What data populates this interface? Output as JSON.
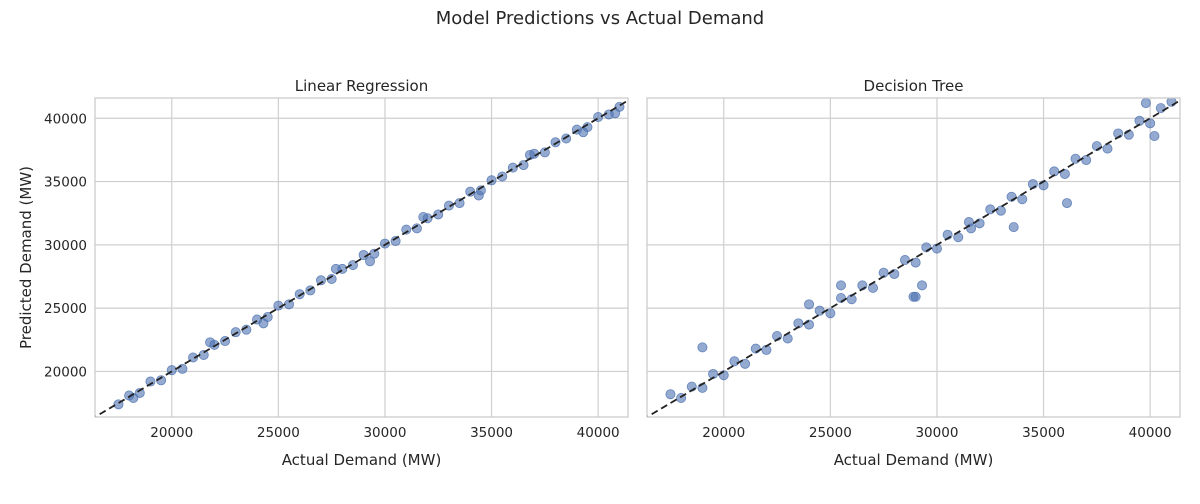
{
  "figure": {
    "suptitle": "Model Predictions vs Actual Demand"
  },
  "chart_data": [
    {
      "type": "scatter",
      "title": "Linear Regression",
      "xlabel": "Actual Demand (MW)",
      "ylabel": "Predicted Demand (MW)",
      "xlim": [
        16400,
        41400
      ],
      "ylim": [
        16400,
        41600
      ],
      "xticks": [
        20000,
        25000,
        30000,
        35000,
        40000
      ],
      "yticks": [
        20000,
        25000,
        30000,
        35000,
        40000
      ],
      "grid": true,
      "point_color": "#4c72b0",
      "reference_line": {
        "style": "dashed",
        "color": "#222222",
        "description": "y = x"
      },
      "series": [
        {
          "x": [
            17500,
            18000,
            18500,
            19000,
            19500,
            20000,
            20500,
            21000,
            21500,
            22000,
            22500,
            23000,
            23500,
            24000,
            24500,
            25000,
            25500,
            26000,
            26500,
            27000,
            27500,
            28000,
            28500,
            29000,
            29500,
            30000,
            30500,
            31000,
            31500,
            32000,
            32500,
            33000,
            33500,
            34000,
            34500,
            35000,
            35500,
            36000,
            36500,
            37000,
            37500,
            38000,
            38500,
            39000,
            39500,
            40000,
            40500,
            41000,
            18200,
            21800,
            24300,
            27700,
            29300,
            31800,
            34400,
            36800,
            39300,
            40800
          ],
          "y": [
            17400,
            18100,
            18300,
            19200,
            19300,
            20100,
            20200,
            21100,
            21300,
            22100,
            22400,
            23100,
            23300,
            24100,
            24300,
            25200,
            25300,
            26100,
            26400,
            27200,
            27300,
            28100,
            28400,
            29200,
            29300,
            30100,
            30300,
            31200,
            31300,
            32100,
            32400,
            33100,
            33300,
            34200,
            34300,
            35100,
            35400,
            36100,
            36300,
            37200,
            37300,
            38100,
            38400,
            39100,
            39300,
            40100,
            40300,
            40900,
            17900,
            22300,
            23800,
            28100,
            28700,
            32200,
            33900,
            37100,
            38900,
            40400
          ]
        }
      ]
    },
    {
      "type": "scatter",
      "title": "Decision Tree",
      "xlabel": "Actual Demand (MW)",
      "ylabel": "",
      "xlim": [
        16400,
        41400
      ],
      "ylim": [
        16400,
        41600
      ],
      "xticks": [
        20000,
        25000,
        30000,
        35000,
        40000
      ],
      "yticks": [
        20000,
        25000,
        30000,
        35000,
        40000
      ],
      "grid": true,
      "point_color": "#4c72b0",
      "reference_line": {
        "style": "dashed",
        "color": "#222222",
        "description": "y = x"
      },
      "series": [
        {
          "x": [
            17500,
            18000,
            18500,
            19000,
            19500,
            20000,
            20500,
            21000,
            21500,
            22000,
            22500,
            23000,
            23500,
            24000,
            24500,
            25000,
            25500,
            26000,
            26500,
            27000,
            27500,
            28000,
            28500,
            29000,
            29500,
            30000,
            30500,
            31000,
            31500,
            32000,
            32500,
            33000,
            33500,
            34000,
            34500,
            35000,
            35500,
            36000,
            36500,
            37000,
            37500,
            38000,
            38500,
            39000,
            39500,
            40000,
            40500,
            41000,
            19000,
            24000,
            25500,
            28900,
            29300,
            31600,
            33600,
            36100,
            40200,
            29000,
            39800
          ],
          "y": [
            18200,
            17900,
            18800,
            18700,
            19800,
            19700,
            20800,
            20600,
            21800,
            21700,
            22800,
            22600,
            23800,
            23700,
            24800,
            24600,
            25800,
            25700,
            26800,
            26600,
            27800,
            27700,
            28800,
            28600,
            29800,
            29700,
            30800,
            30600,
            31800,
            31700,
            32800,
            32700,
            33800,
            33600,
            34800,
            34700,
            35800,
            35600,
            36800,
            36700,
            37800,
            37600,
            38800,
            38700,
            39800,
            39600,
            40800,
            41300,
            21900,
            25300,
            26800,
            25900,
            26800,
            31300,
            31400,
            33300,
            38600,
            25900,
            41200
          ]
        }
      ]
    }
  ]
}
